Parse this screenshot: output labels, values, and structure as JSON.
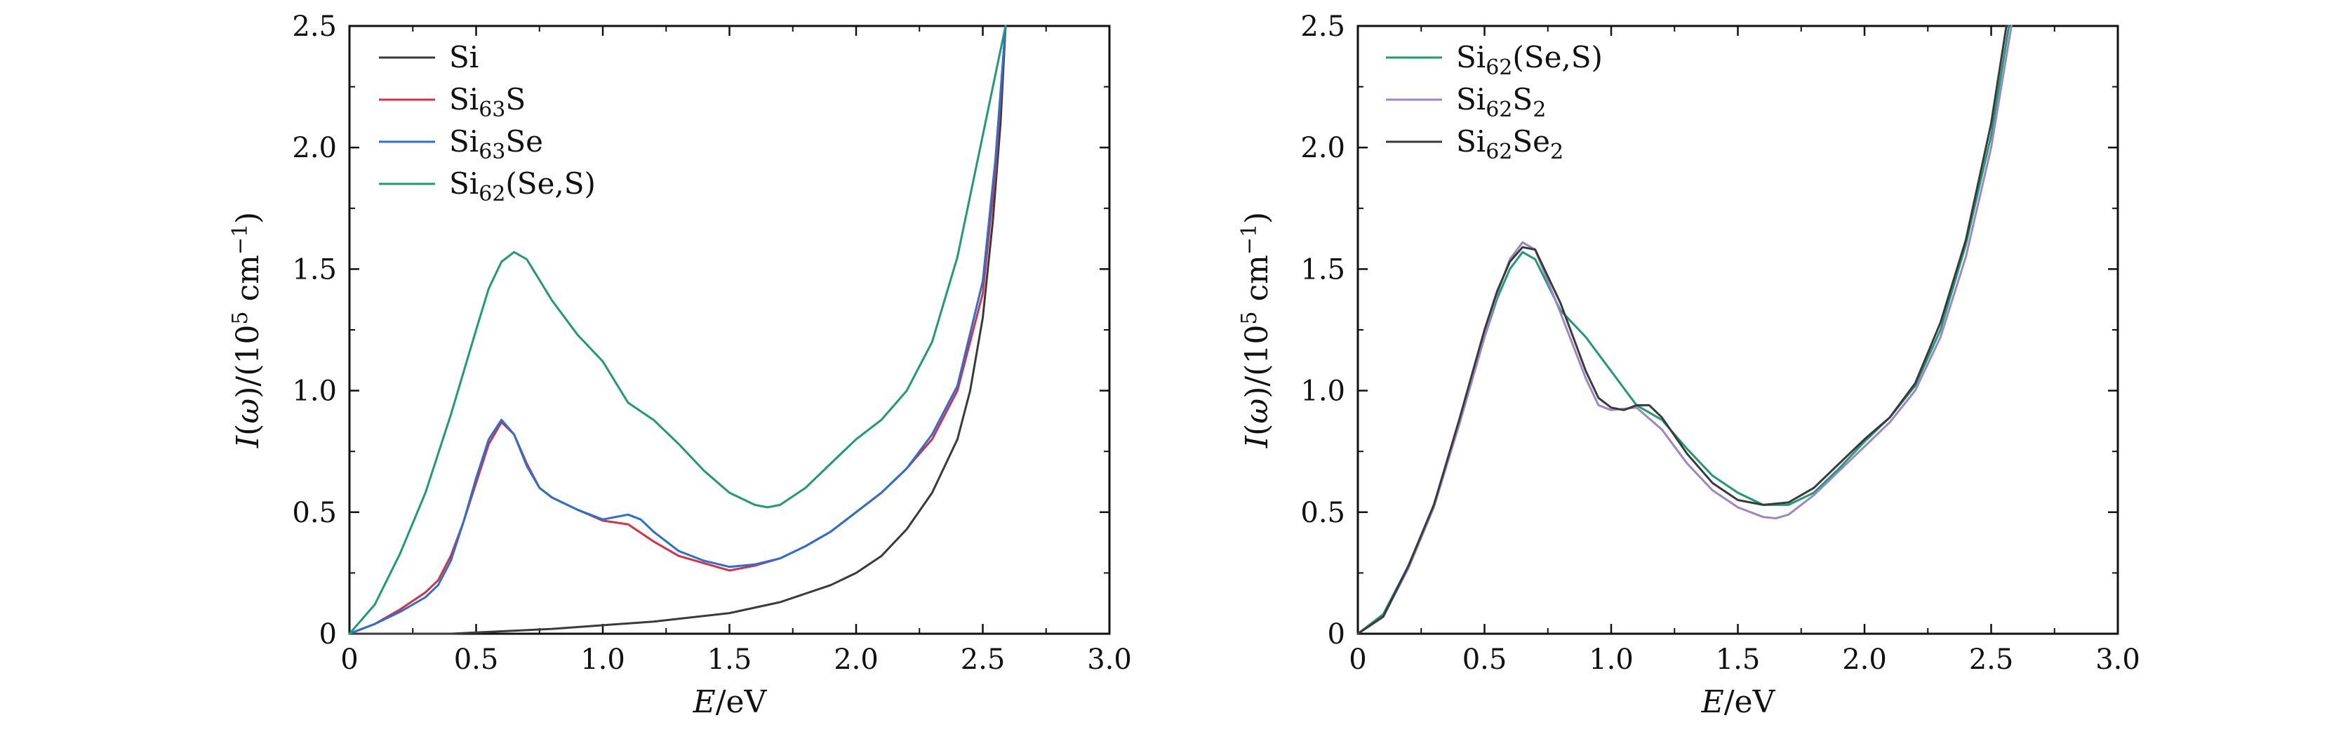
{
  "chart_data": [
    {
      "type": "line",
      "title": "",
      "xlabel": "E/eV",
      "ylabel": "I(ω)/(10^5 cm^-1)",
      "xlim": [
        0,
        3.0
      ],
      "ylim": [
        0,
        2.5
      ],
      "xticks": [
        "0",
        "0.5",
        "1.0",
        "1.5",
        "2.0",
        "2.5",
        "3.0"
      ],
      "yticks": [
        "0",
        "0.5",
        "1.0",
        "1.5",
        "2.0",
        "2.5"
      ],
      "grid": false,
      "legend_position": "top-left",
      "series": [
        {
          "name": "Si",
          "color": "#3a3a3a",
          "points": [
            [
              0.0,
              0.0
            ],
            [
              0.4,
              0.0
            ],
            [
              0.5,
              0.005
            ],
            [
              0.8,
              0.02
            ],
            [
              1.0,
              0.035
            ],
            [
              1.2,
              0.05
            ],
            [
              1.5,
              0.085
            ],
            [
              1.7,
              0.13
            ],
            [
              1.9,
              0.2
            ],
            [
              2.0,
              0.25
            ],
            [
              2.1,
              0.32
            ],
            [
              2.2,
              0.43
            ],
            [
              2.3,
              0.58
            ],
            [
              2.4,
              0.8
            ],
            [
              2.45,
              1.0
            ],
            [
              2.5,
              1.3
            ],
            [
              2.54,
              1.7
            ],
            [
              2.57,
              2.1
            ],
            [
              2.59,
              2.5
            ]
          ]
        },
        {
          "name": "Si63S",
          "color": "#d6304a",
          "points": [
            [
              0.0,
              0.0
            ],
            [
              0.1,
              0.04
            ],
            [
              0.2,
              0.1
            ],
            [
              0.3,
              0.17
            ],
            [
              0.35,
              0.22
            ],
            [
              0.4,
              0.32
            ],
            [
              0.45,
              0.46
            ],
            [
              0.5,
              0.62
            ],
            [
              0.55,
              0.78
            ],
            [
              0.6,
              0.87
            ],
            [
              0.65,
              0.82
            ],
            [
              0.7,
              0.7
            ],
            [
              0.75,
              0.6
            ],
            [
              0.8,
              0.56
            ],
            [
              0.9,
              0.51
            ],
            [
              1.0,
              0.465
            ],
            [
              1.1,
              0.45
            ],
            [
              1.2,
              0.38
            ],
            [
              1.3,
              0.32
            ],
            [
              1.4,
              0.29
            ],
            [
              1.5,
              0.26
            ],
            [
              1.6,
              0.28
            ],
            [
              1.7,
              0.31
            ],
            [
              1.8,
              0.36
            ],
            [
              1.9,
              0.42
            ],
            [
              2.0,
              0.5
            ],
            [
              2.1,
              0.58
            ],
            [
              2.2,
              0.68
            ],
            [
              2.3,
              0.8
            ],
            [
              2.4,
              1.0
            ],
            [
              2.5,
              1.4
            ],
            [
              2.55,
              1.9
            ],
            [
              2.59,
              2.5
            ]
          ]
        },
        {
          "name": "Si63Se",
          "color": "#2a6fd1",
          "points": [
            [
              0.0,
              0.0
            ],
            [
              0.1,
              0.04
            ],
            [
              0.2,
              0.09
            ],
            [
              0.3,
              0.15
            ],
            [
              0.35,
              0.2
            ],
            [
              0.4,
              0.3
            ],
            [
              0.45,
              0.46
            ],
            [
              0.5,
              0.64
            ],
            [
              0.55,
              0.8
            ],
            [
              0.6,
              0.88
            ],
            [
              0.65,
              0.82
            ],
            [
              0.7,
              0.69
            ],
            [
              0.75,
              0.6
            ],
            [
              0.8,
              0.56
            ],
            [
              0.9,
              0.51
            ],
            [
              1.0,
              0.47
            ],
            [
              1.05,
              0.48
            ],
            [
              1.1,
              0.49
            ],
            [
              1.15,
              0.47
            ],
            [
              1.2,
              0.42
            ],
            [
              1.3,
              0.34
            ],
            [
              1.4,
              0.3
            ],
            [
              1.5,
              0.275
            ],
            [
              1.6,
              0.285
            ],
            [
              1.7,
              0.31
            ],
            [
              1.8,
              0.36
            ],
            [
              1.9,
              0.42
            ],
            [
              2.0,
              0.5
            ],
            [
              2.1,
              0.58
            ],
            [
              2.2,
              0.68
            ],
            [
              2.3,
              0.82
            ],
            [
              2.4,
              1.02
            ],
            [
              2.5,
              1.45
            ],
            [
              2.55,
              1.95
            ],
            [
              2.59,
              2.5
            ]
          ]
        },
        {
          "name": "Si62(Se,S)",
          "color": "#1f9a72",
          "points": [
            [
              0.0,
              0.0
            ],
            [
              0.1,
              0.12
            ],
            [
              0.2,
              0.33
            ],
            [
              0.3,
              0.58
            ],
            [
              0.4,
              0.9
            ],
            [
              0.5,
              1.25
            ],
            [
              0.55,
              1.42
            ],
            [
              0.6,
              1.53
            ],
            [
              0.65,
              1.57
            ],
            [
              0.7,
              1.54
            ],
            [
              0.8,
              1.37
            ],
            [
              0.9,
              1.23
            ],
            [
              1.0,
              1.12
            ],
            [
              1.1,
              0.95
            ],
            [
              1.2,
              0.88
            ],
            [
              1.3,
              0.78
            ],
            [
              1.4,
              0.67
            ],
            [
              1.5,
              0.58
            ],
            [
              1.6,
              0.53
            ],
            [
              1.65,
              0.52
            ],
            [
              1.7,
              0.53
            ],
            [
              1.8,
              0.6
            ],
            [
              1.9,
              0.7
            ],
            [
              2.0,
              0.8
            ],
            [
              2.1,
              0.88
            ],
            [
              2.2,
              1.0
            ],
            [
              2.3,
              1.2
            ],
            [
              2.4,
              1.55
            ],
            [
              2.5,
              2.05
            ],
            [
              2.55,
              2.3
            ],
            [
              2.59,
              2.5
            ]
          ]
        }
      ]
    },
    {
      "type": "line",
      "title": "",
      "xlabel": "E/eV",
      "ylabel": "I(ω)/(10^5 cm^-1)",
      "xlim": [
        0,
        3.0
      ],
      "ylim": [
        0,
        2.5
      ],
      "xticks": [
        "0",
        "0.5",
        "1.0",
        "1.5",
        "2.0",
        "2.5",
        "3.0"
      ],
      "yticks": [
        "0",
        "0.5",
        "1.0",
        "1.5",
        "2.0",
        "2.5"
      ],
      "grid": false,
      "legend_position": "top-left",
      "series": [
        {
          "name": "Si62(Se,S)",
          "color": "#1f9a72",
          "points": [
            [
              0.0,
              0.0
            ],
            [
              0.1,
              0.08
            ],
            [
              0.2,
              0.28
            ],
            [
              0.3,
              0.53
            ],
            [
              0.4,
              0.86
            ],
            [
              0.5,
              1.22
            ],
            [
              0.55,
              1.38
            ],
            [
              0.6,
              1.5
            ],
            [
              0.65,
              1.57
            ],
            [
              0.7,
              1.54
            ],
            [
              0.8,
              1.33
            ],
            [
              0.9,
              1.22
            ],
            [
              1.0,
              1.08
            ],
            [
              1.1,
              0.94
            ],
            [
              1.2,
              0.88
            ],
            [
              1.3,
              0.76
            ],
            [
              1.4,
              0.65
            ],
            [
              1.5,
              0.58
            ],
            [
              1.6,
              0.53
            ],
            [
              1.7,
              0.53
            ],
            [
              1.8,
              0.58
            ],
            [
              1.9,
              0.68
            ],
            [
              2.0,
              0.79
            ],
            [
              2.1,
              0.89
            ],
            [
              2.2,
              1.02
            ],
            [
              2.3,
              1.25
            ],
            [
              2.4,
              1.6
            ],
            [
              2.5,
              2.05
            ],
            [
              2.57,
              2.5
            ]
          ]
        },
        {
          "name": "Si62S2",
          "color": "#9a86c8",
          "points": [
            [
              0.0,
              0.0
            ],
            [
              0.1,
              0.07
            ],
            [
              0.2,
              0.27
            ],
            [
              0.3,
              0.52
            ],
            [
              0.4,
              0.86
            ],
            [
              0.5,
              1.22
            ],
            [
              0.55,
              1.4
            ],
            [
              0.6,
              1.54
            ],
            [
              0.65,
              1.61
            ],
            [
              0.7,
              1.58
            ],
            [
              0.8,
              1.32
            ],
            [
              0.9,
              1.05
            ],
            [
              0.95,
              0.94
            ],
            [
              1.0,
              0.92
            ],
            [
              1.1,
              0.93
            ],
            [
              1.2,
              0.84
            ],
            [
              1.3,
              0.7
            ],
            [
              1.4,
              0.59
            ],
            [
              1.5,
              0.52
            ],
            [
              1.6,
              0.48
            ],
            [
              1.65,
              0.475
            ],
            [
              1.7,
              0.49
            ],
            [
              1.8,
              0.57
            ],
            [
              1.9,
              0.67
            ],
            [
              2.0,
              0.77
            ],
            [
              2.1,
              0.87
            ],
            [
              2.2,
              1.0
            ],
            [
              2.3,
              1.22
            ],
            [
              2.4,
              1.55
            ],
            [
              2.5,
              2.0
            ],
            [
              2.58,
              2.5
            ]
          ]
        },
        {
          "name": "Si62Se2",
          "color": "#3a3a3a",
          "points": [
            [
              0.0,
              0.0
            ],
            [
              0.1,
              0.07
            ],
            [
              0.2,
              0.28
            ],
            [
              0.3,
              0.53
            ],
            [
              0.4,
              0.88
            ],
            [
              0.5,
              1.25
            ],
            [
              0.55,
              1.41
            ],
            [
              0.6,
              1.53
            ],
            [
              0.65,
              1.59
            ],
            [
              0.7,
              1.58
            ],
            [
              0.8,
              1.36
            ],
            [
              0.9,
              1.08
            ],
            [
              0.95,
              0.97
            ],
            [
              1.0,
              0.93
            ],
            [
              1.05,
              0.92
            ],
            [
              1.1,
              0.94
            ],
            [
              1.15,
              0.94
            ],
            [
              1.2,
              0.89
            ],
            [
              1.3,
              0.74
            ],
            [
              1.4,
              0.62
            ],
            [
              1.5,
              0.55
            ],
            [
              1.6,
              0.53
            ],
            [
              1.7,
              0.54
            ],
            [
              1.8,
              0.6
            ],
            [
              1.9,
              0.7
            ],
            [
              2.0,
              0.8
            ],
            [
              2.1,
              0.89
            ],
            [
              2.2,
              1.03
            ],
            [
              2.3,
              1.28
            ],
            [
              2.4,
              1.62
            ],
            [
              2.5,
              2.1
            ],
            [
              2.56,
              2.5
            ]
          ]
        }
      ]
    }
  ]
}
